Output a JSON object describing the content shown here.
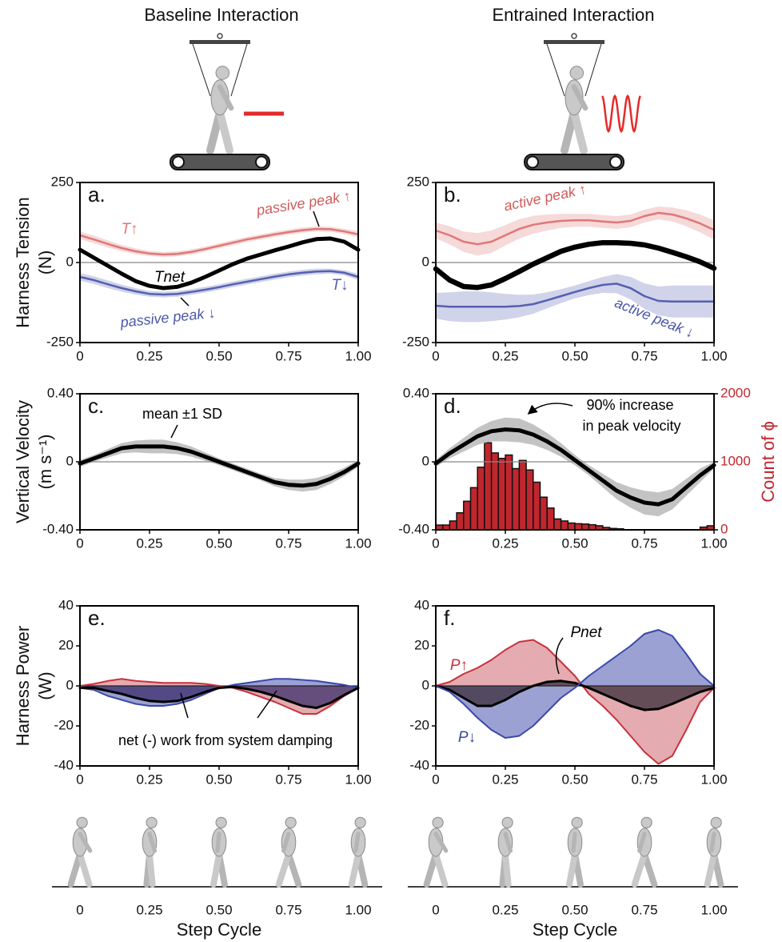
{
  "titles": [
    "Baseline Interaction",
    "Entrained Interaction"
  ],
  "footers": [
    {
      "ticks": [
        0,
        0.25,
        {
          "value": 0.5,
          "label": "0.50"
        },
        0.75,
        {
          "value": 1,
          "label": "1.00"
        }
      ],
      "xlabel": "Step Cycle"
    },
    {
      "ticks": [
        0,
        0.25,
        {
          "value": 0.5,
          "label": "0.50"
        },
        0.75,
        {
          "value": 1,
          "label": "1.00"
        }
      ],
      "xlabel": "Step Cycle"
    }
  ],
  "chart_data": [
    {
      "type": "line",
      "label": "a.",
      "ylabel": "Harness Tension",
      "yunit": "(N)",
      "x": [
        0,
        0.05,
        0.1,
        0.15,
        0.2,
        0.25,
        0.3,
        0.35,
        0.4,
        0.45,
        0.5,
        0.55,
        0.6,
        0.65,
        0.7,
        0.75,
        0.8,
        0.85,
        0.9,
        0.95,
        1
      ],
      "xlim": [
        0,
        1
      ],
      "xticks": [
        0,
        0.25,
        {
          "value": 0.5,
          "label": "0.50"
        },
        0.75,
        {
          "value": 1,
          "label": "1.00"
        }
      ],
      "ylim": [
        -250,
        250
      ],
      "yticks": [
        -250,
        0,
        250
      ],
      "series": [
        {
          "name": "T↑",
          "color": "#e07777",
          "values": [
            85,
            72,
            58,
            45,
            35,
            28,
            25,
            27,
            33,
            42,
            52,
            62,
            72,
            80,
            88,
            95,
            101,
            105,
            104,
            97,
            88
          ],
          "sd": [
            12,
            12,
            11,
            10,
            9,
            8,
            8,
            8,
            8,
            8,
            8,
            8,
            8,
            8,
            8,
            8,
            8,
            8,
            8,
            8,
            10
          ]
        },
        {
          "name": "Tnet",
          "color": "#000000",
          "values": [
            40,
            15,
            -10,
            -35,
            -58,
            -73,
            -80,
            -76,
            -63,
            -45,
            -25,
            -5,
            12,
            25,
            38,
            50,
            63,
            73,
            75,
            65,
            40
          ]
        },
        {
          "name": "T↓",
          "color": "#5560b0",
          "values": [
            -45,
            -55,
            -68,
            -80,
            -90,
            -98,
            -100,
            -98,
            -92,
            -85,
            -77,
            -68,
            -60,
            -52,
            -44,
            -37,
            -32,
            -28,
            -27,
            -32,
            -45
          ],
          "sd": [
            12,
            12,
            12,
            11,
            10,
            9,
            9,
            9,
            9,
            9,
            9,
            9,
            9,
            9,
            9,
            9,
            9,
            9,
            8,
            8,
            10
          ]
        }
      ],
      "annotations": [
        {
          "text": "passive peak ↑",
          "color": "#d05a5a"
        },
        {
          "text": "passive peak ↓",
          "color": "#4a55a8"
        }
      ]
    },
    {
      "type": "line",
      "label": "b.",
      "x": [
        0,
        0.05,
        0.1,
        0.15,
        0.2,
        0.25,
        0.3,
        0.35,
        0.4,
        0.45,
        0.5,
        0.55,
        0.6,
        0.65,
        0.7,
        0.75,
        0.8,
        0.85,
        0.9,
        0.95,
        1
      ],
      "xlim": [
        0,
        1
      ],
      "xticks": [
        0,
        0.25,
        {
          "value": 0.5,
          "label": "0.50"
        },
        0.75,
        {
          "value": 1,
          "label": "1.00"
        }
      ],
      "ylim": [
        -250,
        250
      ],
      "yticks": [
        -250,
        0,
        250
      ],
      "series": [
        {
          "color": "#e07777",
          "values": [
            100,
            85,
            65,
            57,
            65,
            85,
            105,
            118,
            125,
            130,
            132,
            132,
            128,
            125,
            130,
            145,
            155,
            150,
            138,
            122,
            102
          ],
          "sd": [
            25,
            28,
            32,
            35,
            35,
            32,
            30,
            28,
            25,
            22,
            20,
            20,
            20,
            20,
            20,
            20,
            20,
            22,
            25,
            28,
            30
          ]
        },
        {
          "color": "#000000",
          "values": [
            -20,
            -55,
            -75,
            -78,
            -70,
            -50,
            -28,
            -5,
            15,
            35,
            48,
            57,
            62,
            62,
            60,
            55,
            45,
            32,
            18,
            2,
            -18
          ]
        },
        {
          "color": "#5560b0",
          "values": [
            -135,
            -138,
            -138,
            -138,
            -138,
            -138,
            -136,
            -130,
            -118,
            -105,
            -92,
            -80,
            -70,
            -66,
            -80,
            -105,
            -120,
            -122,
            -122,
            -122,
            -122
          ],
          "sd": [
            40,
            45,
            48,
            48,
            45,
            40,
            35,
            30,
            25,
            22,
            20,
            22,
            25,
            30,
            35,
            40,
            45,
            50,
            50,
            50,
            50
          ]
        }
      ],
      "annotations": [
        {
          "text": "active peak ↑",
          "color": "#d05a5a"
        },
        {
          "text": "active peak ↓",
          "color": "#4a55a8"
        }
      ]
    },
    {
      "type": "line",
      "label": "c.",
      "ylabel": "Vertical Velocity",
      "yunit": "(m s⁻¹)",
      "x": [
        0,
        0.05,
        0.1,
        0.15,
        0.2,
        0.25,
        0.3,
        0.35,
        0.4,
        0.45,
        0.5,
        0.55,
        0.6,
        0.65,
        0.7,
        0.75,
        0.8,
        0.85,
        0.9,
        0.95,
        1
      ],
      "xlim": [
        0,
        1
      ],
      "xticks": [
        0,
        0.25,
        {
          "value": 0.5,
          "label": "0.50"
        },
        0.75,
        {
          "value": 1,
          "label": "1.00"
        }
      ],
      "ylim": [
        -0.4,
        0.4
      ],
      "yticks": [
        {
          "value": -0.4,
          "label": "-0.40"
        },
        0,
        {
          "value": 0.4,
          "label": "0.40"
        }
      ],
      "series": [
        {
          "color": "#000000",
          "values": [
            -0.01,
            0.02,
            0.05,
            0.08,
            0.09,
            0.09,
            0.09,
            0.08,
            0.06,
            0.03,
            0.0,
            -0.03,
            -0.06,
            -0.09,
            -0.12,
            -0.135,
            -0.14,
            -0.13,
            -0.1,
            -0.06,
            -0.01
          ],
          "sd": [
            0.02,
            0.02,
            0.025,
            0.03,
            0.035,
            0.04,
            0.04,
            0.035,
            0.03,
            0.025,
            0.02,
            0.02,
            0.02,
            0.02,
            0.025,
            0.03,
            0.035,
            0.035,
            0.03,
            0.025,
            0.02
          ]
        }
      ],
      "annotations": [
        {
          "text": "mean ±1 SD",
          "color": "#000000"
        }
      ]
    },
    {
      "type": "line",
      "label": "d.",
      "x": [
        0,
        0.05,
        0.1,
        0.15,
        0.2,
        0.25,
        0.3,
        0.35,
        0.4,
        0.45,
        0.5,
        0.55,
        0.6,
        0.65,
        0.7,
        0.75,
        0.8,
        0.85,
        0.9,
        0.95,
        1
      ],
      "xlim": [
        0,
        1
      ],
      "xticks": [
        0,
        0.25,
        {
          "value": 0.5,
          "label": "0.50"
        },
        0.75,
        {
          "value": 1,
          "label": "1.00"
        }
      ],
      "ylim": [
        -0.4,
        0.4
      ],
      "yticks": [
        {
          "value": -0.4,
          "label": "-0.40"
        },
        0,
        {
          "value": 0.4,
          "label": "0.40"
        }
      ],
      "y2label": "Count of ϕ",
      "y2lim": [
        0,
        2000
      ],
      "y2ticks": [
        0,
        1000,
        2000
      ],
      "y2color": "#c0262d",
      "series": [
        {
          "color": "#000000",
          "values": [
            -0.01,
            0.05,
            0.1,
            0.15,
            0.18,
            0.19,
            0.185,
            0.16,
            0.12,
            0.07,
            0.01,
            -0.05,
            -0.11,
            -0.17,
            -0.21,
            -0.24,
            -0.25,
            -0.22,
            -0.15,
            -0.08,
            -0.02
          ],
          "sd": [
            0.02,
            0.03,
            0.04,
            0.05,
            0.06,
            0.07,
            0.07,
            0.06,
            0.05,
            0.04,
            0.03,
            0.03,
            0.04,
            0.05,
            0.06,
            0.07,
            0.07,
            0.06,
            0.05,
            0.04,
            0.02
          ]
        }
      ],
      "histogram": {
        "axis": "y2",
        "color": "#c0262d",
        "bins": [
          0,
          0.025,
          0.05,
          0.075,
          0.1,
          0.125,
          0.15,
          0.175,
          0.2,
          0.225,
          0.25,
          0.275,
          0.3,
          0.325,
          0.35,
          0.375,
          0.4,
          0.425,
          0.45,
          0.475,
          0.5,
          0.525,
          0.55,
          0.575,
          0.6,
          0.625,
          0.65,
          0.675,
          0.7,
          0.725,
          0.75,
          0.775,
          0.8,
          0.825,
          0.85,
          0.875,
          0.9,
          0.925,
          0.95,
          0.975,
          1
        ],
        "counts": [
          70,
          70,
          130,
          250,
          420,
          620,
          920,
          1280,
          1130,
          1050,
          1100,
          900,
          1020,
          880,
          700,
          480,
          320,
          160,
          130,
          100,
          90,
          85,
          75,
          60,
          35,
          20,
          15,
          0,
          0,
          0,
          0,
          0,
          0,
          0,
          0,
          0,
          0,
          0,
          40,
          60
        ]
      },
      "annotations": [
        {
          "text": "90% increase",
          "color": "#000000"
        },
        {
          "text": "in peak velocity",
          "color": "#000000"
        }
      ]
    },
    {
      "type": "area",
      "label": "e.",
      "ylabel": "Harness Power",
      "yunit": "(W)",
      "x": [
        0,
        0.05,
        0.1,
        0.15,
        0.2,
        0.25,
        0.3,
        0.35,
        0.4,
        0.45,
        0.5,
        0.55,
        0.6,
        0.65,
        0.7,
        0.75,
        0.8,
        0.85,
        0.9,
        0.95,
        1
      ],
      "xlim": [
        0,
        1
      ],
      "xticks": [
        0,
        0.25,
        {
          "value": 0.5,
          "label": "0.50"
        },
        0.75,
        {
          "value": 1,
          "label": "1.00"
        }
      ],
      "ylim": [
        -40,
        40
      ],
      "yticks": [
        -40,
        -20,
        0,
        20,
        40
      ],
      "series": [
        {
          "color": "#c8323c",
          "fill": "#d9878f",
          "values": [
            0,
            1,
            2.5,
            3.5,
            2.5,
            2,
            1.5,
            1.5,
            1.5,
            1,
            0,
            -1,
            -3,
            -5.5,
            -8,
            -11,
            -14,
            -14,
            -10,
            -5,
            -1
          ]
        },
        {
          "color": "#3a48a8",
          "fill": "#7079c0",
          "values": [
            -1,
            -2,
            -5,
            -7,
            -9,
            -10,
            -10,
            -9,
            -7,
            -4,
            -1,
            0.5,
            1.5,
            2.5,
            3.5,
            3.5,
            3,
            2.5,
            1.5,
            0.5,
            -1
          ]
        },
        {
          "color": "#000000",
          "fill": "#3b2d6b",
          "values": [
            -1,
            -1,
            -2.5,
            -4,
            -6,
            -7.5,
            -8,
            -7.5,
            -5.5,
            -3,
            -1,
            -0.5,
            -1.5,
            -3,
            -5,
            -7.5,
            -10,
            -11,
            -8.5,
            -4.5,
            -1
          ]
        }
      ],
      "annotations": [
        {
          "text": "net (-) work from system damping",
          "color": "#000000"
        }
      ]
    },
    {
      "type": "area",
      "label": "f.",
      "x": [
        0,
        0.05,
        0.1,
        0.15,
        0.2,
        0.25,
        0.3,
        0.35,
        0.4,
        0.45,
        0.5,
        0.55,
        0.6,
        0.65,
        0.7,
        0.75,
        0.8,
        0.85,
        0.9,
        0.95,
        1
      ],
      "xlim": [
        0,
        1
      ],
      "xticks": [
        0,
        0.25,
        {
          "value": 0.5,
          "label": "0.50"
        },
        0.75,
        {
          "value": 1,
          "label": "1.00"
        }
      ],
      "ylim": [
        -40,
        40
      ],
      "yticks": [
        -40,
        -20,
        0,
        20,
        40
      ],
      "series": [
        {
          "name": "P↑",
          "color": "#c8323c",
          "fill": "#d9878f",
          "values": [
            0,
            2,
            6,
            9,
            13,
            18,
            22,
            23,
            19,
            12,
            5,
            -4,
            -10,
            -17,
            -25,
            -33,
            -39,
            -35,
            -22,
            -8,
            -1
          ]
        },
        {
          "name": "Pnet",
          "color": "#000000",
          "fill": "#3b2d3b",
          "values": [
            0,
            -2,
            -6,
            -10,
            -10,
            -7,
            -3,
            0,
            2,
            2.5,
            1.5,
            -1,
            -4,
            -7,
            -10,
            -12,
            -11.5,
            -9,
            -6,
            -3,
            -1
          ]
        },
        {
          "name": "P↓",
          "color": "#3a48a8",
          "fill": "#7079c0",
          "values": [
            0,
            -3,
            -9,
            -16,
            -22,
            -26,
            -25,
            -20,
            -13,
            -6,
            -1,
            5,
            10,
            15,
            20,
            26,
            28,
            25,
            16,
            6,
            0
          ]
        }
      ],
      "annotations": []
    }
  ]
}
